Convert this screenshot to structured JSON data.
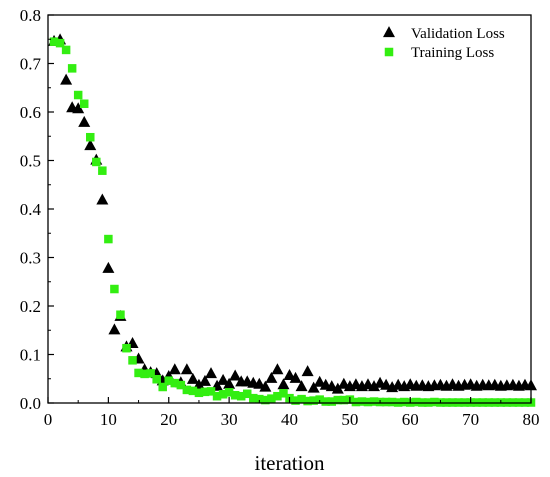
{
  "chart_data": {
    "type": "scatter",
    "xlabel": "iteration",
    "ylabel": "",
    "xlim": [
      0,
      80
    ],
    "ylim": [
      0,
      0.8
    ],
    "xticks": [
      0,
      10,
      20,
      30,
      40,
      50,
      60,
      70,
      80
    ],
    "yticks": [
      0.0,
      0.1,
      0.2,
      0.3,
      0.4,
      0.5,
      0.6,
      0.7,
      0.8
    ],
    "grid": false,
    "legend_position": "top-right",
    "series": [
      {
        "name": "Validation Loss",
        "marker": "triangle",
        "color": "#000000",
        "x": [
          1,
          2,
          3,
          4,
          5,
          6,
          7,
          8,
          9,
          10,
          11,
          12,
          13,
          14,
          15,
          16,
          17,
          18,
          19,
          20,
          21,
          22,
          23,
          24,
          25,
          26,
          27,
          28,
          29,
          30,
          31,
          32,
          33,
          34,
          35,
          36,
          37,
          38,
          39,
          40,
          41,
          42,
          43,
          44,
          45,
          46,
          47,
          48,
          49,
          50,
          51,
          52,
          53,
          54,
          55,
          56,
          57,
          58,
          59,
          60,
          61,
          62,
          63,
          64,
          65,
          66,
          67,
          68,
          69,
          70,
          71,
          72,
          73,
          74,
          75,
          76,
          77,
          78,
          79,
          80
        ],
        "y": [
          0.745,
          0.748,
          0.665,
          0.608,
          0.606,
          0.578,
          0.53,
          0.5,
          0.418,
          0.277,
          0.15,
          0.178,
          0.115,
          0.122,
          0.09,
          0.068,
          0.062,
          0.06,
          0.045,
          0.054,
          0.068,
          0.041,
          0.068,
          0.048,
          0.036,
          0.044,
          0.06,
          0.034,
          0.046,
          0.038,
          0.055,
          0.043,
          0.043,
          0.04,
          0.038,
          0.032,
          0.05,
          0.068,
          0.037,
          0.056,
          0.05,
          0.033,
          0.064,
          0.03,
          0.042,
          0.036,
          0.033,
          0.028,
          0.038,
          0.033,
          0.037,
          0.033,
          0.037,
          0.033,
          0.04,
          0.036,
          0.031,
          0.036,
          0.033,
          0.037,
          0.034,
          0.035,
          0.033,
          0.035,
          0.036,
          0.034,
          0.037,
          0.034,
          0.036,
          0.037,
          0.034,
          0.036,
          0.035,
          0.036,
          0.034,
          0.035,
          0.036,
          0.034,
          0.036,
          0.035
        ]
      },
      {
        "name": "Training Loss",
        "marker": "square",
        "color": "#33ee11",
        "x": [
          1,
          2,
          3,
          4,
          5,
          6,
          7,
          8,
          9,
          10,
          11,
          12,
          13,
          14,
          15,
          16,
          17,
          18,
          19,
          20,
          21,
          22,
          23,
          24,
          25,
          26,
          27,
          28,
          29,
          30,
          31,
          32,
          33,
          34,
          35,
          36,
          37,
          38,
          39,
          40,
          41,
          42,
          43,
          44,
          45,
          46,
          47,
          48,
          49,
          50,
          51,
          52,
          53,
          54,
          55,
          56,
          57,
          58,
          59,
          60,
          61,
          62,
          63,
          64,
          65,
          66,
          67,
          68,
          69,
          70,
          71,
          72,
          73,
          74,
          75,
          76,
          77,
          78,
          79,
          80
        ],
        "y": [
          0.745,
          0.742,
          0.728,
          0.69,
          0.635,
          0.617,
          0.548,
          0.497,
          0.479,
          0.338,
          0.235,
          0.182,
          0.113,
          0.088,
          0.062,
          0.06,
          0.061,
          0.049,
          0.033,
          0.046,
          0.041,
          0.037,
          0.027,
          0.025,
          0.021,
          0.023,
          0.024,
          0.014,
          0.018,
          0.022,
          0.016,
          0.014,
          0.019,
          0.01,
          0.008,
          0.006,
          0.009,
          0.014,
          0.02,
          0.01,
          0.005,
          0.008,
          0.004,
          0.005,
          0.007,
          0.003,
          0.003,
          0.006,
          0.006,
          0.007,
          0.002,
          0.003,
          0.002,
          0.003,
          0.002,
          0.002,
          0.002,
          0.001,
          0.002,
          0.001,
          0.002,
          0.001,
          0.001,
          0.002,
          0.001,
          0.001,
          0.001,
          0.001,
          0.001,
          0.001,
          0.001,
          0.001,
          0.001,
          0.001,
          0.001,
          0.001,
          0.001,
          0.001,
          0.001,
          0.001
        ]
      }
    ]
  }
}
